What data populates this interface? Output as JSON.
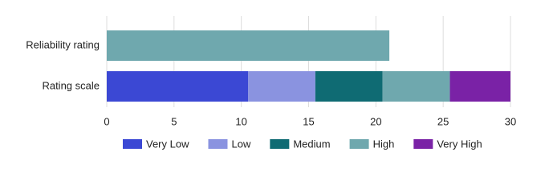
{
  "chart_data": {
    "type": "stacked-barh",
    "categories": [
      "Reliability rating",
      "Rating scale"
    ],
    "series": [
      {
        "name": "Very Low",
        "color": "#3b48d4",
        "values": [
          null,
          10.5
        ]
      },
      {
        "name": "Low",
        "color": "#8a93e0",
        "values": [
          null,
          5
        ]
      },
      {
        "name": "Medium",
        "color": "#0f6b73",
        "values": [
          null,
          5
        ]
      },
      {
        "name": "High",
        "color": "#6fa8ae",
        "values": [
          21,
          5
        ]
      },
      {
        "name": "Very High",
        "color": "#7a22a6",
        "values": [
          null,
          4.5
        ]
      }
    ],
    "xlim": [
      0,
      30
    ],
    "xticks": [
      0,
      5,
      10,
      15,
      20,
      25,
      30
    ],
    "grid": true,
    "legend": "bottom"
  }
}
